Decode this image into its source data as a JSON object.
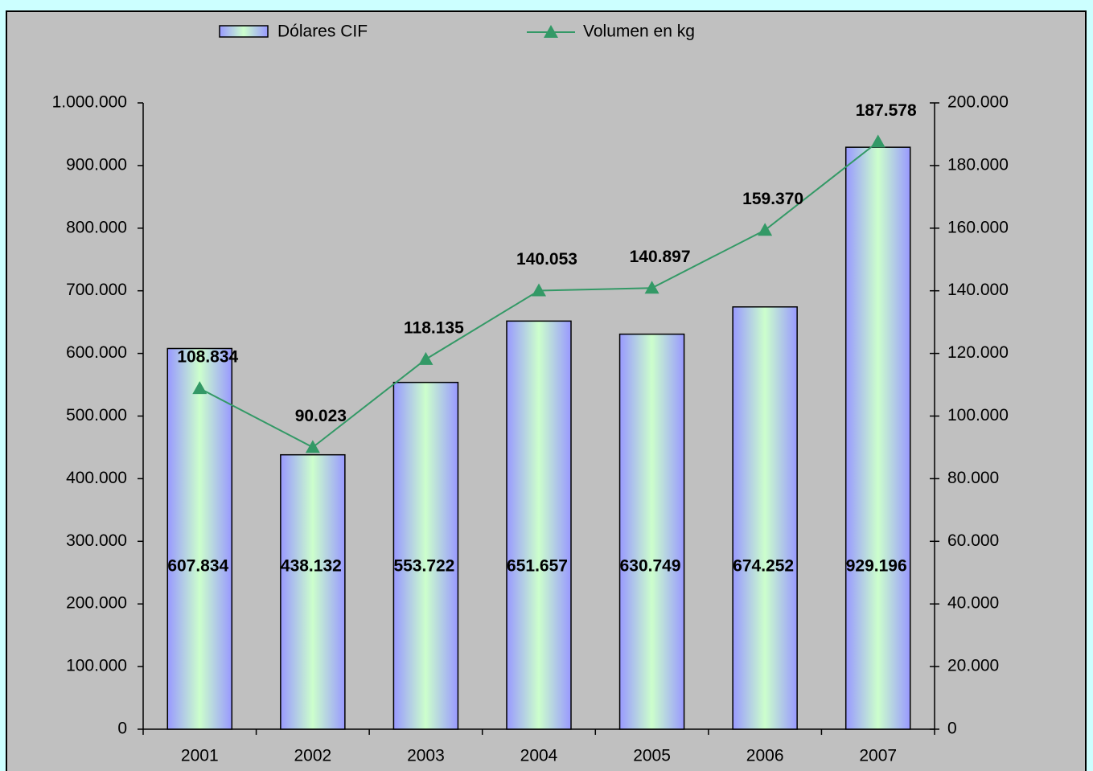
{
  "chart_data": {
    "type": "bar",
    "categories": [
      "2001",
      "2002",
      "2003",
      "2004",
      "2005",
      "2006",
      "2007"
    ],
    "series": [
      {
        "name": "Dólares CIF",
        "type": "bar",
        "axis": "y",
        "color": "#9999ff",
        "color2": "#ccffcc",
        "values": [
          607834,
          438132,
          553722,
          651657,
          630749,
          674252,
          929196
        ],
        "value_labels": [
          "607.834",
          "438.132",
          "553.722",
          "651.657",
          "630.749",
          "674.252",
          "929.196"
        ]
      },
      {
        "name": "Volumen en kg",
        "type": "line",
        "axis": "y2",
        "color": "#339966",
        "values": [
          108834,
          90023,
          118135,
          140053,
          140897,
          159370,
          187578
        ],
        "value_labels": [
          "108.834",
          "90.023",
          "118.135",
          "140.053",
          "140.897",
          "159.370",
          "187.578"
        ]
      }
    ],
    "ylim": [
      0,
      1000000
    ],
    "yticks": [
      0,
      {
        "value": 100000,
        "label": "100.000"
      },
      {
        "value": 200000,
        "label": "200.000"
      },
      {
        "value": 300000,
        "label": "300.000"
      },
      {
        "value": 400000,
        "label": "400.000"
      },
      {
        "value": 500000,
        "label": "500.000"
      },
      {
        "value": 600000,
        "label": "600.000"
      },
      {
        "value": 700000,
        "label": "700.000"
      },
      {
        "value": 800000,
        "label": "800.000"
      },
      {
        "value": 900000,
        "label": "900.000"
      },
      {
        "value": 1000000,
        "label": "1.000.000"
      }
    ],
    "y2lim": [
      0,
      200000
    ],
    "y2ticks": [
      0,
      {
        "value": 20000,
        "label": "20.000"
      },
      {
        "value": 40000,
        "label": "40.000"
      },
      {
        "value": 60000,
        "label": "60.000"
      },
      {
        "value": 80000,
        "label": "80.000"
      },
      {
        "value": 100000,
        "label": "100.000"
      },
      {
        "value": 120000,
        "label": "120.000"
      },
      {
        "value": 140000,
        "label": "140.000"
      },
      {
        "value": 160000,
        "label": "160.000"
      },
      {
        "value": 180000,
        "label": "180.000"
      },
      {
        "value": 200000,
        "label": "200.000"
      }
    ],
    "legend": "top",
    "background": "#c0c0c0"
  }
}
